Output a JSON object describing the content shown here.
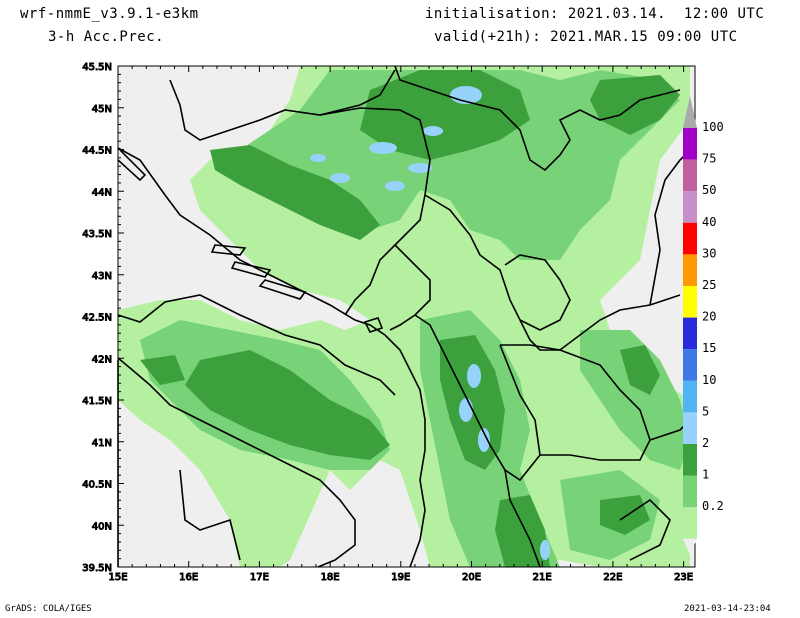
{
  "header": {
    "model": "wrf-nmmE_v3.9.1-e3km",
    "field": "3-h Acc.Prec.",
    "init": "initialisation: 2021.03.14.  12:00 UTC",
    "valid": "valid(+21h): 2021.MAR.15 09:00 UTC"
  },
  "footer": {
    "credit": "GrADS: COLA/IGES",
    "timestamp": "2021-03-14-23:04"
  },
  "axes": {
    "lat_labels": [
      "45.5N",
      "45N",
      "44.5N",
      "44N",
      "43.5N",
      "43N",
      "42.5N",
      "42N",
      "41.5N",
      "41N",
      "40.5N",
      "40N",
      "39.5N"
    ],
    "lon_labels": [
      "15E",
      "16E",
      "17E",
      "18E",
      "19E",
      "20E",
      "21E",
      "22E",
      "23E"
    ]
  },
  "legend": {
    "labels": [
      "100",
      "75",
      "50",
      "40",
      "30",
      "25",
      "20",
      "15",
      "10",
      "5",
      "2",
      "1",
      "0.2"
    ],
    "colors": [
      "#a000c8",
      "#c0609c",
      "#c890c8",
      "#ff0000",
      "#ff9900",
      "#ffff00",
      "#2a2adc",
      "#3c78e6",
      "#50b4f5",
      "#96d2fa",
      "#3ca03c",
      "#78d278",
      "#b4f0a0"
    ],
    "top_cap_color": "#aaaaaa"
  },
  "map_colors": {
    "background": "#efefef",
    "light_green": "#b4f0a0",
    "mid_green": "#78d278",
    "dark_green": "#3ca03c",
    "light_blue": "#96d2fa",
    "border": "#000000"
  }
}
